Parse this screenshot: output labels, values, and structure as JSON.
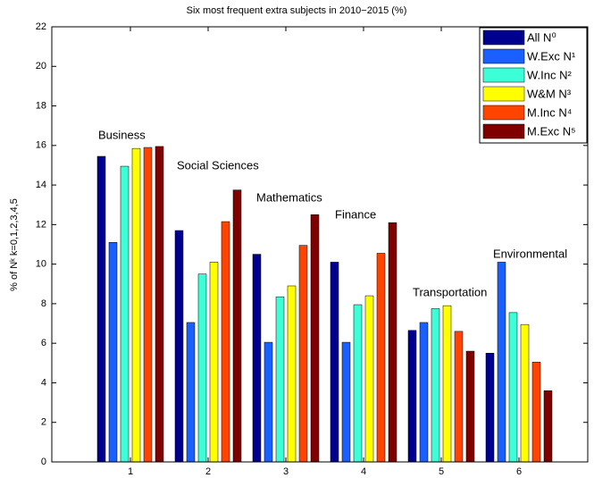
{
  "chart_data": {
    "type": "bar",
    "title": "Six most frequent extra subjects in 2010−2015 (%)",
    "y_label": "% of Nᵏ k=0,1,2,3,4,5",
    "categories": [
      "1",
      "2",
      "3",
      "4",
      "5",
      "6"
    ],
    "annotations": [
      "Business",
      "Social Sciences",
      "Mathematics",
      "Finance",
      "Transportation",
      "Environmental"
    ],
    "series": [
      {
        "name": "All N⁰",
        "color": "#00008f",
        "values": [
          15.45,
          11.7,
          10.5,
          10.1,
          6.65,
          5.5
        ]
      },
      {
        "name": "W.Exc N¹",
        "color": "#1a5fff",
        "values": [
          11.1,
          7.05,
          6.05,
          6.05,
          7.05,
          10.1
        ]
      },
      {
        "name": "W.Inc N²",
        "color": "#3cffd8",
        "values": [
          14.95,
          9.5,
          8.35,
          7.95,
          7.75,
          7.55
        ]
      },
      {
        "name": "W&M N³",
        "color": "#ffff00",
        "values": [
          15.85,
          10.1,
          8.9,
          8.4,
          7.9,
          6.95
        ]
      },
      {
        "name": "M.Inc N⁴",
        "color": "#ff4400",
        "values": [
          15.9,
          12.15,
          10.95,
          10.55,
          6.6,
          5.05
        ]
      },
      {
        "name": "M.Exc N⁵",
        "color": "#800000",
        "values": [
          15.95,
          13.75,
          12.5,
          12.1,
          5.6,
          3.6
        ]
      }
    ],
    "ylim": [
      0,
      22
    ],
    "yticks": [
      0,
      2,
      4,
      6,
      8,
      10,
      12,
      14,
      16,
      18,
      20,
      22
    ],
    "legend": "upper right"
  }
}
